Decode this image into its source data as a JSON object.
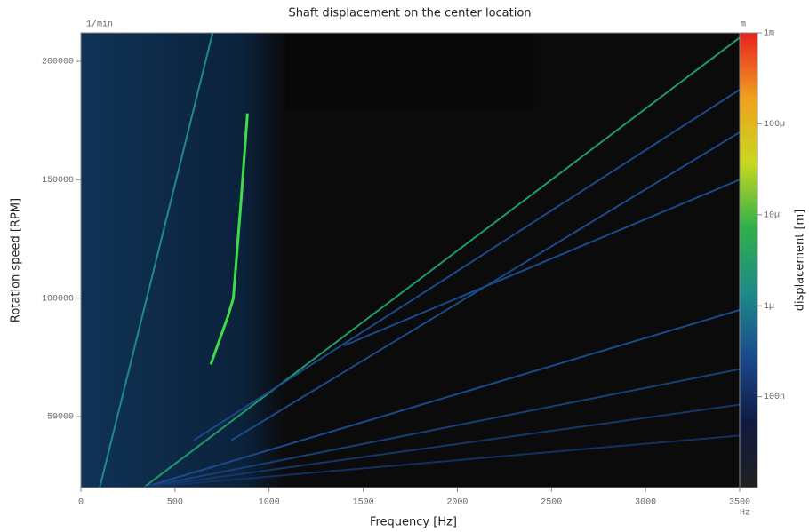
{
  "chart_data": {
    "type": "heatmap",
    "title": "Shaft displacement on the center location",
    "x_label": "Frequency [Hz]",
    "y_label": "Rotation speed [RPM]",
    "x_unit": "Hz",
    "y_unit": "1/min",
    "colorbar_label": "displacement [m]",
    "colorbar_unit": "m",
    "xlim": [
      0,
      3500
    ],
    "ylim": [
      20000,
      212000
    ],
    "xticks": [
      0,
      500,
      1000,
      1500,
      2000,
      2500,
      3000,
      3500
    ],
    "yticks": [
      50000,
      100000,
      150000,
      200000
    ],
    "colorbar_log": true,
    "colorbar_lim": [
      1e-08,
      0.001
    ],
    "colorbar_ticks": [
      {
        "value": 0.001,
        "label": "1m"
      },
      {
        "value": 0.0001,
        "label": "100µ"
      },
      {
        "value": 1e-05,
        "label": "10µ"
      },
      {
        "value": 1e-06,
        "label": "1µ"
      },
      {
        "value": 1e-07,
        "label": "100n"
      }
    ],
    "colormap": [
      "#202020",
      "#101a40",
      "#1a4a8a",
      "#1f8a8a",
      "#2fb04a",
      "#c8d820",
      "#f0a020",
      "#e82020"
    ],
    "ridges": [
      {
        "x": [
          333,
          3500
        ],
        "values": [
          20000,
          210000
        ],
        "color": "#1e9a6a"
      },
      {
        "x": [
          690,
          780,
          810,
          850,
          885
        ],
        "values": [
          72000,
          92000,
          100000,
          140000,
          178000
        ],
        "color": "#3ddc4a"
      },
      {
        "x": [
          100,
          700
        ],
        "values": [
          20000,
          212000
        ],
        "color": "#1f8a8a"
      },
      {
        "x": [
          600,
          3500
        ],
        "values": [
          40000,
          188000
        ],
        "color": "#1a4a8a"
      },
      {
        "x": [
          800,
          3500
        ],
        "values": [
          40000,
          170000
        ],
        "color": "#1a4a8a"
      },
      {
        "x": [
          1400,
          3500
        ],
        "values": [
          80000,
          150000
        ],
        "color": "#1a4a8a"
      },
      {
        "x": [
          330,
          3500
        ],
        "values": [
          20000,
          95000
        ],
        "color": "#1a4a8a"
      },
      {
        "x": [
          330,
          3500
        ],
        "values": [
          20000,
          70000
        ],
        "color": "#173f78"
      },
      {
        "x": [
          330,
          3500
        ],
        "values": [
          20000,
          55000
        ],
        "color": "#153668"
      },
      {
        "x": [
          330,
          3500
        ],
        "values": [
          20000,
          42000
        ],
        "color": "#133060"
      }
    ]
  }
}
